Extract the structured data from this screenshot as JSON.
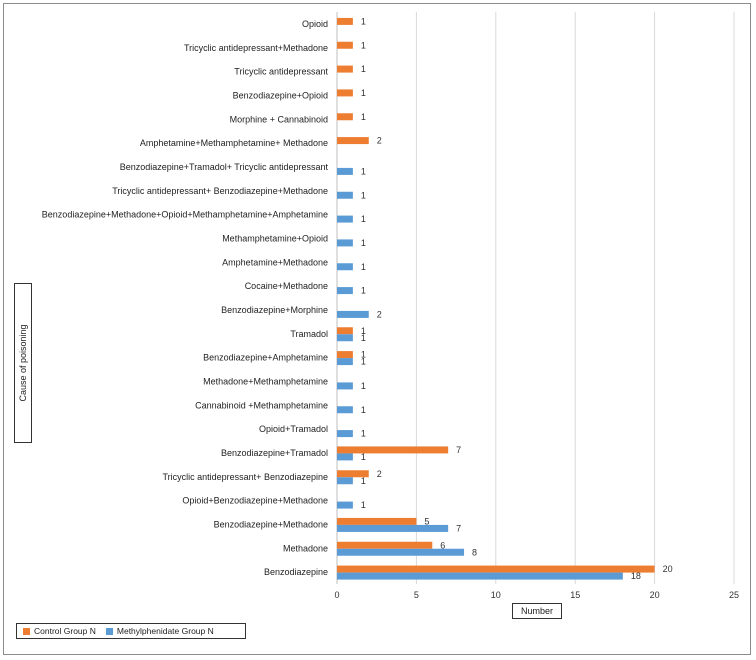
{
  "chart_data": {
    "type": "bar",
    "orientation": "horizontal",
    "title": "",
    "xlabel": "Number",
    "ylabel": "Cause of poisoning",
    "xlim": [
      0,
      25
    ],
    "xticks": [
      0,
      5,
      10,
      15,
      20,
      25
    ],
    "grid": "vertical",
    "legend_position": "bottom-left",
    "categories": [
      "Opioid",
      "Tricyclic antidepressant+Methadone",
      "Tricyclic antidepressant",
      "Benzodiazepine+Opioid",
      "Morphine + Cannabinoid",
      "Amphetamine+Methamphetamine+ Methadone",
      "Benzodiazepine+Tramadol+ Tricyclic antidepressant",
      "Tricyclic antidepressant+ Benzodiazepine+Methadone",
      "Benzodiazepine+Methadone+Opioid+Methamphetamine+Amphetamine",
      "Methamphetamine+Opioid",
      "Amphetamine+Methadone",
      "Cocaine+Methadone",
      "Benzodiazepine+Morphine",
      "Tramadol",
      "Benzodiazepine+Amphetamine",
      "Methadone+Methamphetamine",
      "Cannabinoid +Methamphetamine",
      "Opioid+Tramadol",
      "Benzodiazepine+Tramadol",
      "Tricyclic antidepressant+ Benzodiazepine",
      "Opioid+Benzodiazepine+Methadone",
      "Benzodiazepine+Methadone",
      "Methadone",
      "Benzodiazepine"
    ],
    "series": [
      {
        "name": "Control Group N",
        "color": "#ed7d31",
        "values": [
          1,
          1,
          1,
          1,
          1,
          2,
          null,
          null,
          null,
          null,
          null,
          null,
          null,
          1,
          1,
          null,
          null,
          null,
          7,
          2,
          null,
          5,
          6,
          20
        ]
      },
      {
        "name": "Methylphenidate Group N",
        "color": "#5b9bd5",
        "values": [
          null,
          null,
          null,
          null,
          null,
          null,
          1,
          1,
          1,
          1,
          1,
          1,
          2,
          1,
          1,
          1,
          1,
          1,
          1,
          1,
          1,
          7,
          8,
          18
        ]
      }
    ]
  }
}
